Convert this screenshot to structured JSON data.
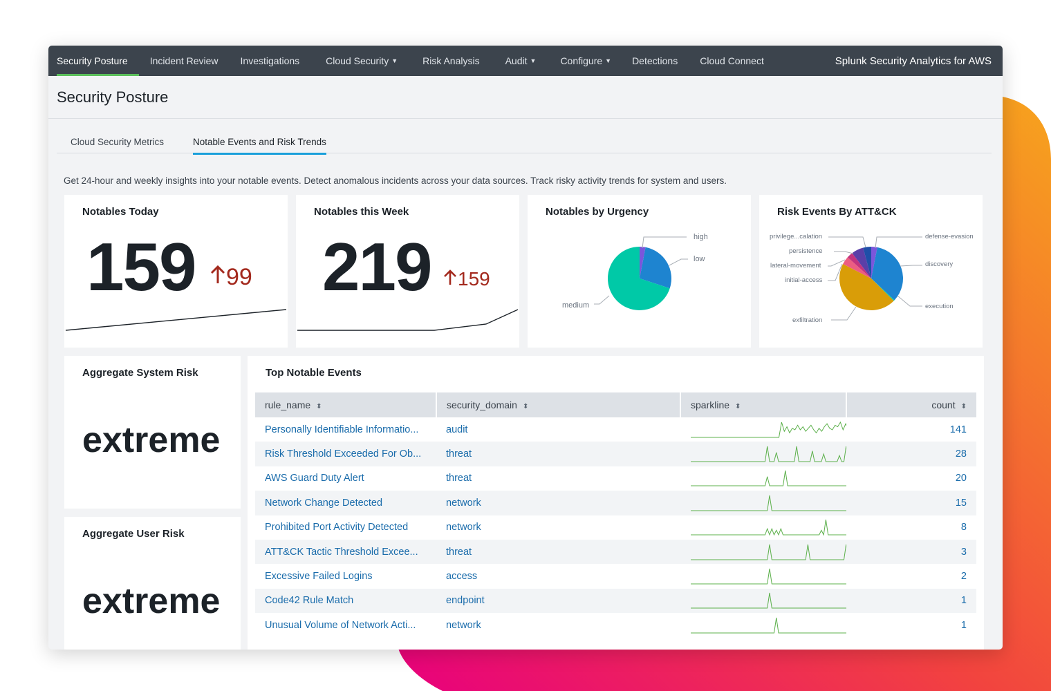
{
  "colors": {
    "nav_bg": "#3c444d",
    "accent_green": "#5cc05c",
    "tab_accent": "#1a9fda",
    "delta_red": "#a3291d",
    "link_blue": "#1a6cab",
    "sparkline": "#5cb04b"
  },
  "nav": {
    "items": [
      {
        "label": "Security Posture",
        "dropdown": false
      },
      {
        "label": "Incident Review",
        "dropdown": false
      },
      {
        "label": "Investigations",
        "dropdown": false
      },
      {
        "label": "Cloud Security",
        "dropdown": true
      },
      {
        "label": "Risk Analysis",
        "dropdown": false
      },
      {
        "label": "Audit",
        "dropdown": true
      },
      {
        "label": "Configure",
        "dropdown": true
      },
      {
        "label": "Detections",
        "dropdown": false
      },
      {
        "label": "Cloud Connect",
        "dropdown": false
      }
    ],
    "app_title": "Splunk Security Analytics for AWS"
  },
  "page": {
    "title": "Security Posture"
  },
  "tabs": [
    {
      "label": "Cloud Security Metrics"
    },
    {
      "label": "Notable Events and Risk Trends"
    }
  ],
  "description": "Get 24-hour and weekly insights into your notable events. Detect anomalous incidents across your data sources. Track risky activity trends for system and users.",
  "notables_today": {
    "title": "Notables Today",
    "value": "159",
    "delta": "99",
    "trend": [
      0.0,
      1.0
    ]
  },
  "notables_week": {
    "title": "Notables this Week",
    "value": "219",
    "delta": "159",
    "trend": [
      0,
      0,
      0,
      0,
      0.3,
      1.0
    ]
  },
  "urgency": {
    "title": "Notables by Urgency",
    "slices": [
      {
        "label": "high",
        "value": 3,
        "color": "#7b56db"
      },
      {
        "label": "low",
        "value": 27,
        "color": "#1e84d0"
      },
      {
        "label": "medium",
        "value": 70,
        "color": "#00c9a7"
      }
    ]
  },
  "attck": {
    "title": "Risk Events By ATT&CK",
    "slices": [
      {
        "label": "defense-evasion",
        "value": 3,
        "color": "#7b56db"
      },
      {
        "label": "discovery",
        "value": 33,
        "color": "#1e84d0"
      },
      {
        "label": "execution",
        "value": 0.5,
        "color": "#00c9a7"
      },
      {
        "label": "exfiltration",
        "value": 44,
        "color": "#d99d08"
      },
      {
        "label": "initial-access",
        "value": 4,
        "color": "#ec5d82"
      },
      {
        "label": "lateral-movement",
        "value": 3,
        "color": "#c2347f"
      },
      {
        "label": "persistence",
        "value": 6,
        "color": "#5a3fa8"
      },
      {
        "label": "privilege...calation",
        "value": 4,
        "color": "#1f4fa8"
      }
    ]
  },
  "system_risk": {
    "title": "Aggregate System Risk",
    "value": "extreme"
  },
  "user_risk": {
    "title": "Aggregate User Risk",
    "value": "extreme"
  },
  "top_events": {
    "title": "Top Notable Events",
    "columns": [
      "rule_name",
      "security_domain",
      "sparkline",
      "count"
    ],
    "rows": [
      {
        "rule_name": "Personally Identifiable Informatio...",
        "security_domain": "audit",
        "count": "141",
        "spark": [
          0,
          0,
          0,
          0,
          0,
          0,
          0,
          0,
          0,
          0,
          0,
          0,
          0,
          0,
          0,
          0,
          0,
          0,
          0,
          0,
          0,
          0,
          0,
          0,
          0,
          0,
          0,
          0,
          0,
          0,
          0,
          0,
          0,
          0,
          1,
          0.4,
          0.7,
          0.3,
          0.6,
          0.5,
          0.8,
          0.5,
          0.7,
          0.4,
          0.6,
          0.8,
          0.5,
          0.3,
          0.6,
          0.4,
          0.7,
          0.9,
          0.6,
          0.5,
          0.8,
          0.7,
          1,
          0.5,
          0.9,
          0.4
        ]
      },
      {
        "rule_name": "Risk Threshold Exceeded For Ob...",
        "security_domain": "threat",
        "count": "28",
        "spark": [
          0,
          0,
          0,
          0,
          0,
          0,
          0,
          0,
          0,
          0,
          0,
          0,
          0,
          0,
          0,
          0,
          0,
          0,
          0,
          0,
          0,
          0,
          0,
          0,
          0,
          0,
          0,
          0,
          0,
          0,
          0,
          0,
          0,
          0,
          1,
          0,
          0,
          0,
          0.6,
          0,
          0,
          0,
          0,
          0,
          0,
          0,
          0,
          1,
          0,
          0,
          0,
          0,
          0,
          0,
          0.7,
          0,
          0,
          0,
          0,
          0.5,
          0,
          0,
          0,
          0,
          0,
          0,
          0.4,
          0,
          0,
          1,
          0
        ]
      },
      {
        "rule_name": "AWS Guard Duty Alert",
        "security_domain": "threat",
        "count": "20",
        "spark": [
          0,
          0,
          0,
          0,
          0,
          0,
          0,
          0,
          0,
          0,
          0,
          0,
          0,
          0,
          0,
          0,
          0,
          0,
          0,
          0,
          0,
          0,
          0,
          0,
          0,
          0,
          0,
          0,
          0,
          0,
          0,
          0,
          0,
          0,
          0.6,
          0,
          0,
          0,
          0,
          0,
          0,
          0,
          1,
          0,
          0,
          0,
          0,
          0,
          0,
          0,
          0,
          0,
          0,
          0,
          0,
          0,
          0,
          0,
          0,
          0,
          0,
          0,
          0,
          0,
          0,
          0,
          0,
          0,
          0,
          0,
          0
        ]
      },
      {
        "rule_name": "Network Change Detected",
        "security_domain": "network",
        "count": "15",
        "spark": [
          0,
          0,
          0,
          0,
          0,
          0,
          0,
          0,
          0,
          0,
          0,
          0,
          0,
          0,
          0,
          0,
          0,
          0,
          0,
          0,
          0,
          0,
          0,
          0,
          0,
          0,
          0,
          0,
          0,
          0,
          0,
          0,
          0,
          0,
          0,
          1,
          0,
          0,
          0,
          0,
          0,
          0,
          0,
          0,
          0,
          0,
          0,
          0,
          0,
          0,
          0,
          0,
          0,
          0,
          0,
          0,
          0,
          0,
          0,
          0,
          0,
          0,
          0,
          0,
          0,
          0,
          0,
          0,
          0,
          0,
          0
        ]
      },
      {
        "rule_name": "Prohibited Port Activity Detected",
        "security_domain": "network",
        "count": "8",
        "spark": [
          0,
          0,
          0,
          0,
          0,
          0,
          0,
          0,
          0,
          0,
          0,
          0,
          0,
          0,
          0,
          0,
          0,
          0,
          0,
          0,
          0,
          0,
          0,
          0,
          0,
          0,
          0,
          0,
          0,
          0,
          0,
          0,
          0,
          0,
          0.4,
          0,
          0.4,
          0,
          0.3,
          0,
          0.4,
          0,
          0,
          0,
          0,
          0,
          0,
          0,
          0,
          0,
          0,
          0,
          0,
          0,
          0,
          0,
          0,
          0,
          0.3,
          0,
          1,
          0,
          0,
          0,
          0,
          0,
          0,
          0,
          0,
          0,
          0
        ]
      },
      {
        "rule_name": "ATT&CK Tactic Threshold Excee...",
        "security_domain": "threat",
        "count": "3",
        "spark": [
          0,
          0,
          0,
          0,
          0,
          0,
          0,
          0,
          0,
          0,
          0,
          0,
          0,
          0,
          0,
          0,
          0,
          0,
          0,
          0,
          0,
          0,
          0,
          0,
          0,
          0,
          0,
          0,
          0,
          0,
          0,
          0,
          0,
          0,
          0,
          1,
          0,
          0,
          0,
          0,
          0,
          0,
          0,
          0,
          0,
          0,
          0,
          0,
          0,
          0,
          0,
          0,
          1,
          0,
          0,
          0,
          0,
          0,
          0,
          0,
          0,
          0,
          0,
          0,
          0,
          0,
          0,
          0,
          0,
          1,
          0
        ]
      },
      {
        "rule_name": "Excessive Failed Logins",
        "security_domain": "access",
        "count": "2",
        "spark": [
          0,
          0,
          0,
          0,
          0,
          0,
          0,
          0,
          0,
          0,
          0,
          0,
          0,
          0,
          0,
          0,
          0,
          0,
          0,
          0,
          0,
          0,
          0,
          0,
          0,
          0,
          0,
          0,
          0,
          0,
          0,
          0,
          0,
          0,
          0,
          1,
          0,
          0,
          0,
          0,
          0,
          0,
          0,
          0,
          0,
          0,
          0,
          0,
          0,
          0,
          0,
          0,
          0,
          0,
          0,
          0,
          0,
          0,
          0,
          0,
          0,
          0,
          0,
          0,
          0,
          0,
          0,
          0,
          0,
          0,
          0
        ]
      },
      {
        "rule_name": "Code42 Rule Match",
        "security_domain": "endpoint",
        "count": "1",
        "spark": [
          0,
          0,
          0,
          0,
          0,
          0,
          0,
          0,
          0,
          0,
          0,
          0,
          0,
          0,
          0,
          0,
          0,
          0,
          0,
          0,
          0,
          0,
          0,
          0,
          0,
          0,
          0,
          0,
          0,
          0,
          0,
          0,
          0,
          0,
          0,
          1,
          0,
          0,
          0,
          0,
          0,
          0,
          0,
          0,
          0,
          0,
          0,
          0,
          0,
          0,
          0,
          0,
          0,
          0,
          0,
          0,
          0,
          0,
          0,
          0,
          0,
          0,
          0,
          0,
          0,
          0,
          0,
          0,
          0,
          0,
          0
        ]
      },
      {
        "rule_name": "Unusual Volume of Network Acti...",
        "security_domain": "network",
        "count": "1",
        "spark": [
          0,
          0,
          0,
          0,
          0,
          0,
          0,
          0,
          0,
          0,
          0,
          0,
          0,
          0,
          0,
          0,
          0,
          0,
          0,
          0,
          0,
          0,
          0,
          0,
          0,
          0,
          0,
          0,
          0,
          0,
          0,
          0,
          0,
          0,
          0,
          0,
          0,
          0,
          1,
          0,
          0,
          0,
          0,
          0,
          0,
          0,
          0,
          0,
          0,
          0,
          0,
          0,
          0,
          0,
          0,
          0,
          0,
          0,
          0,
          0,
          0,
          0,
          0,
          0,
          0,
          0,
          0,
          0,
          0,
          0,
          0
        ]
      }
    ]
  }
}
